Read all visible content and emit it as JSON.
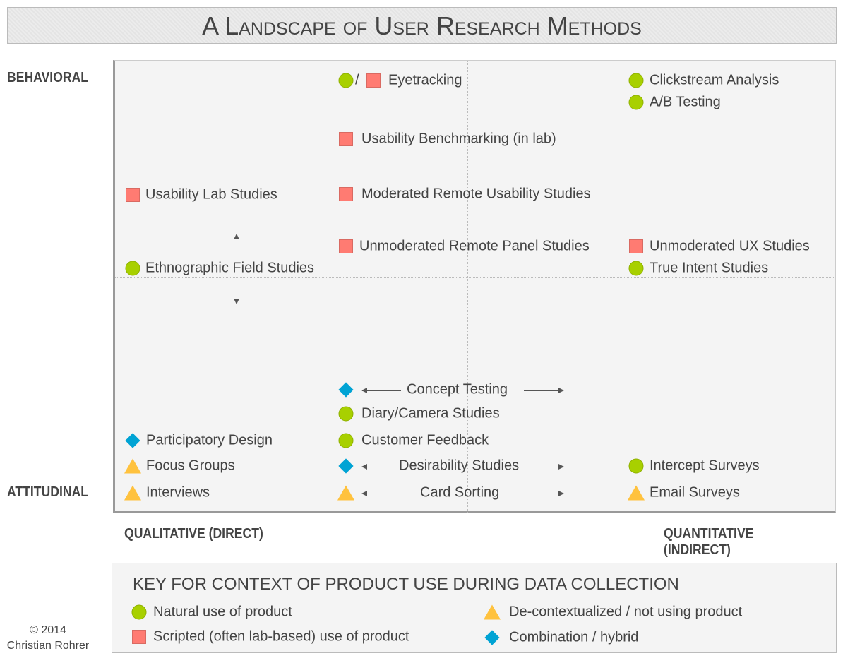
{
  "title": "A Landscape of User Research Methods",
  "axes": {
    "top": "BEHAVIORAL",
    "bottom": "ATTITUDINAL",
    "left": "QUALITATIVE (DIRECT)",
    "right": "QUANTITATIVE (INDIRECT)"
  },
  "colors": {
    "natural": "#a8d000",
    "scripted": "#ff7b72",
    "hybrid": "#00a3d4",
    "decontextualized": "#ffc23e"
  },
  "methods": [
    {
      "label": "Eyetracking",
      "marker": "circle/square",
      "separator": "/"
    },
    {
      "label": "Clickstream Analysis",
      "marker": "circle"
    },
    {
      "label": "A/B Testing",
      "marker": "circle"
    },
    {
      "label": "Usability Benchmarking (in lab)",
      "marker": "square"
    },
    {
      "label": "Usability Lab Studies",
      "marker": "square"
    },
    {
      "label": "Moderated Remote Usability Studies",
      "marker": "square"
    },
    {
      "label": "Unmoderated Remote Panel Studies",
      "marker": "square"
    },
    {
      "label": "Unmoderated UX Studies",
      "marker": "square"
    },
    {
      "label": "Ethnographic Field Studies",
      "marker": "circle"
    },
    {
      "label": "True Intent Studies",
      "marker": "circle"
    },
    {
      "label": "Concept Testing",
      "marker": "diamond"
    },
    {
      "label": "Diary/Camera Studies",
      "marker": "circle"
    },
    {
      "label": "Participatory Design",
      "marker": "diamond"
    },
    {
      "label": "Customer Feedback",
      "marker": "circle"
    },
    {
      "label": "Focus Groups",
      "marker": "triangle"
    },
    {
      "label": "Desirability Studies",
      "marker": "diamond"
    },
    {
      "label": "Intercept Surveys",
      "marker": "circle"
    },
    {
      "label": "Interviews",
      "marker": "triangle"
    },
    {
      "label": "Card Sorting",
      "marker": "triangle"
    },
    {
      "label": "Email Surveys",
      "marker": "triangle"
    }
  ],
  "key": {
    "title": "KEY FOR CONTEXT OF PRODUCT USE DURING DATA COLLECTION",
    "items": [
      {
        "label": "Natural use of product",
        "marker": "circle"
      },
      {
        "label": "Scripted (often lab-based) use of product",
        "marker": "square"
      },
      {
        "label": "De-contextualized / not using product",
        "marker": "triangle"
      },
      {
        "label": "Combination / hybrid",
        "marker": "diamond"
      }
    ]
  },
  "copyright": {
    "line1": "© 2014",
    "line2": "Christian Rohrer"
  }
}
